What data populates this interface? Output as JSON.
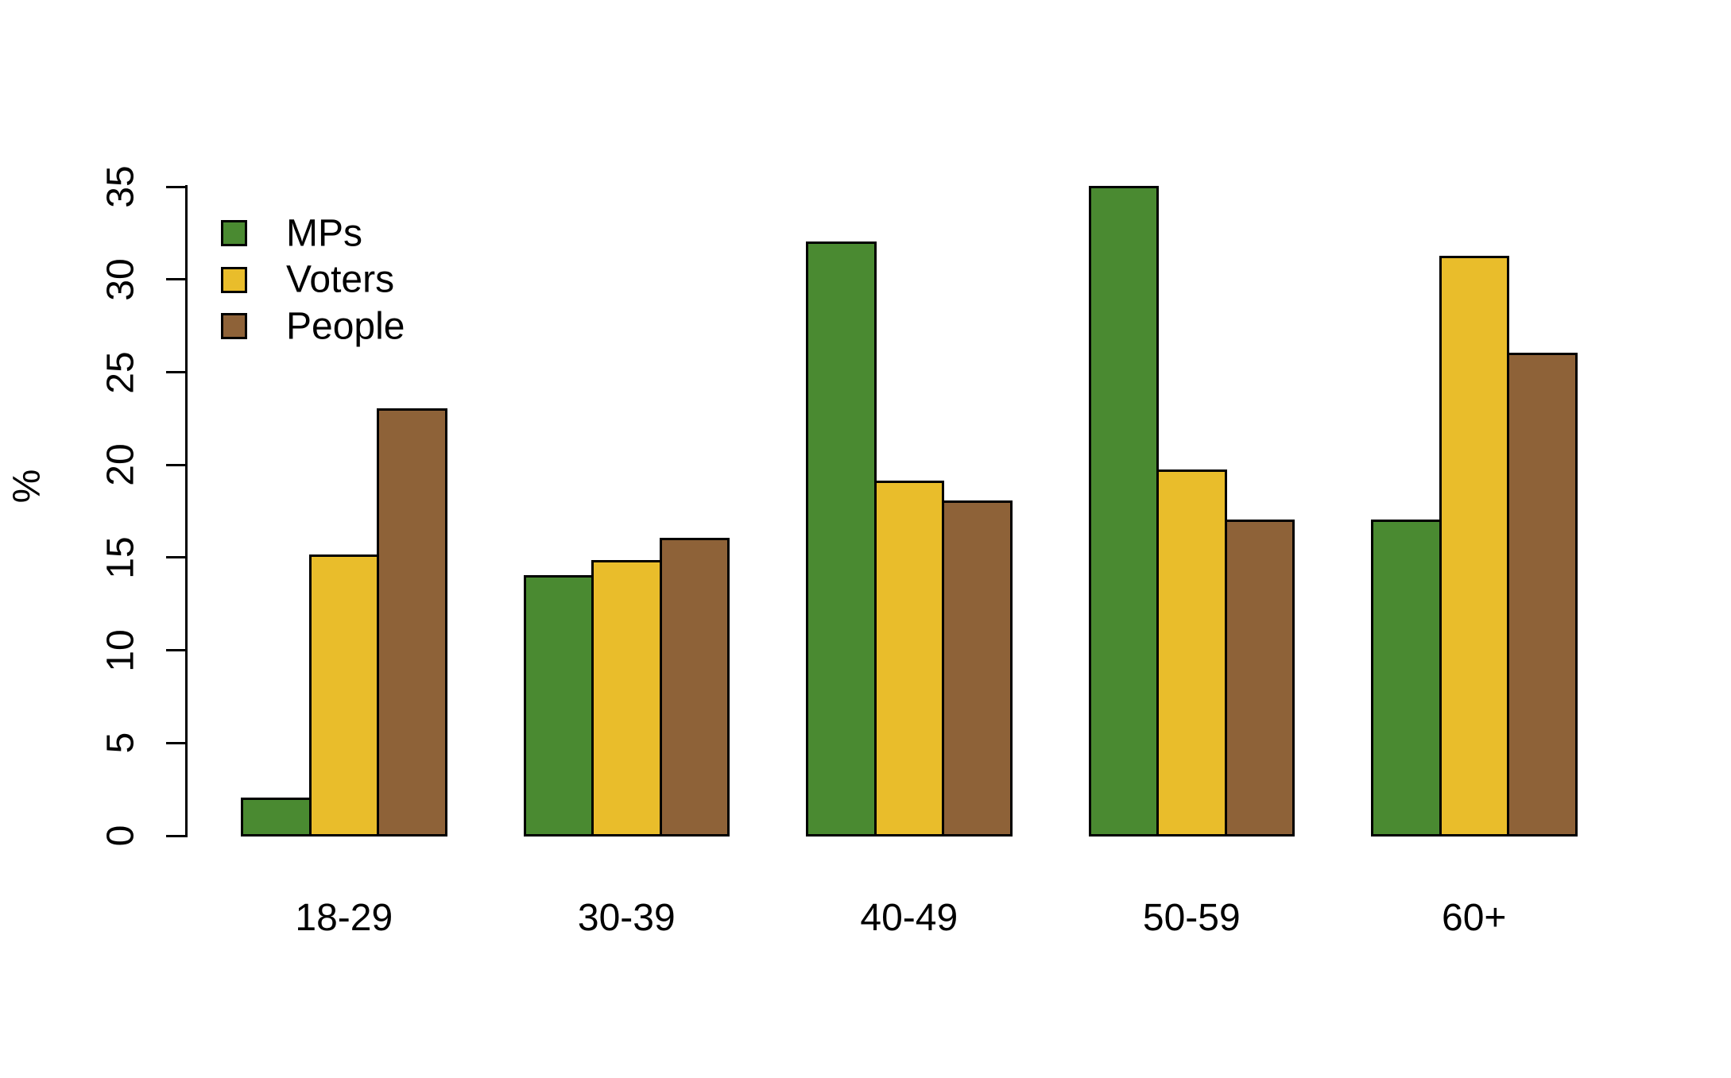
{
  "chart_data": {
    "type": "bar",
    "title": "",
    "ylabel": "%",
    "xlabel": "",
    "categories": [
      "18-29",
      "30-39",
      "40-49",
      "50-59",
      "60+"
    ],
    "series": [
      {
        "name": "MPs",
        "color": "#4a8a31",
        "values": [
          2,
          14,
          32,
          35,
          17
        ]
      },
      {
        "name": "Voters",
        "color": "#e9bd2b",
        "values": [
          15.1,
          14.8,
          19.1,
          19.7,
          31.2
        ]
      },
      {
        "name": "People",
        "color": "#8e6238",
        "values": [
          23,
          16,
          18,
          17,
          26
        ]
      }
    ],
    "y_axis": {
      "label": "%",
      "min": 0,
      "max": 35,
      "tick_step": 5,
      "ticks": [
        0,
        5,
        10,
        15,
        20,
        25,
        30,
        35
      ]
    },
    "x_axis": {
      "tick_labels": [
        "18-29",
        "30-39",
        "40-49",
        "50-59",
        "60+"
      ]
    },
    "legend": {
      "position": "top-left",
      "entries": [
        "MPs",
        "Voters",
        "People"
      ]
    },
    "grid": false,
    "background": "#ffffff",
    "bar_border_color": "#000000"
  }
}
